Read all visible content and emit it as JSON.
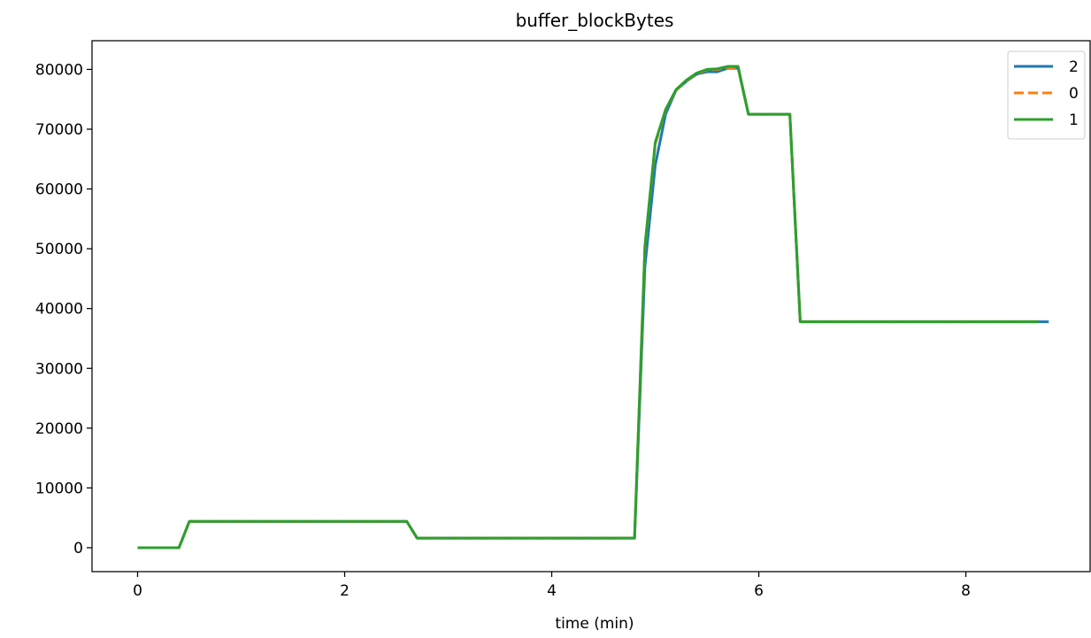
{
  "chart_data": {
    "type": "line",
    "title": "buffer_blockBytes",
    "xlabel": "time (min)",
    "ylabel": "",
    "xlim": [
      -0.44,
      9.2
    ],
    "ylim": [
      -4000,
      84800
    ],
    "xticks": [
      0,
      2,
      4,
      6,
      8
    ],
    "yticks": [
      0,
      10000,
      20000,
      30000,
      40000,
      50000,
      60000,
      70000,
      80000
    ],
    "legend_position": "top-right",
    "grid": false,
    "series": [
      {
        "name": "2",
        "color": "#1f77b4",
        "style": "solid",
        "x": [
          0,
          0.1,
          0.2,
          0.3,
          0.4,
          0.5,
          1.0,
          1.5,
          2.0,
          2.5,
          2.6,
          2.7,
          3.0,
          3.5,
          4.0,
          4.5,
          4.8,
          4.9,
          5.0,
          5.1,
          5.2,
          5.3,
          5.4,
          5.5,
          5.6,
          5.7,
          5.8,
          5.9,
          6.0,
          6.1,
          6.2,
          6.3,
          6.4,
          6.5,
          7.0,
          7.5,
          8.0,
          8.5,
          8.8
        ],
        "y": [
          0,
          0,
          0,
          0,
          0,
          4400,
          4400,
          4400,
          4400,
          4400,
          4400,
          1600,
          1600,
          1600,
          1600,
          1600,
          1600,
          47000,
          64000,
          72500,
          76500,
          78000,
          79200,
          79600,
          79600,
          80200,
          80200,
          72500,
          72500,
          72500,
          72500,
          72500,
          37800,
          37800,
          37800,
          37800,
          37800,
          37800,
          37800
        ]
      },
      {
        "name": "0",
        "color": "#ff7f0e",
        "style": "dashed",
        "x": [
          0,
          0.1,
          0.2,
          0.3,
          0.4,
          0.5,
          1.0,
          1.5,
          2.0,
          2.5,
          2.6,
          2.7,
          3.0,
          3.5,
          4.0,
          4.5,
          4.8,
          4.9,
          5.0,
          5.1,
          5.2,
          5.3,
          5.4,
          5.5,
          5.6,
          5.7,
          5.8,
          5.9,
          6.0,
          6.1,
          6.2,
          6.3,
          6.4,
          6.5,
          7.0,
          7.5,
          8.0,
          8.5,
          8.7
        ],
        "y": [
          0,
          0,
          0,
          0,
          0,
          4400,
          4400,
          4400,
          4400,
          4400,
          4400,
          1600,
          1600,
          1600,
          1600,
          1600,
          1600,
          50000,
          67500,
          73200,
          76500,
          78100,
          79300,
          79900,
          80000,
          80300,
          80300,
          72500,
          72500,
          72500,
          72500,
          72500,
          37800,
          37800,
          37800,
          37800,
          37800,
          37800,
          37800
        ]
      },
      {
        "name": "1",
        "color": "#2ca02c",
        "style": "solid",
        "x": [
          0,
          0.1,
          0.2,
          0.3,
          0.4,
          0.5,
          1.0,
          1.5,
          2.0,
          2.5,
          2.6,
          2.7,
          3.0,
          3.5,
          4.0,
          4.5,
          4.8,
          4.9,
          5.0,
          5.1,
          5.2,
          5.3,
          5.4,
          5.5,
          5.6,
          5.7,
          5.8,
          5.9,
          6.0,
          6.1,
          6.2,
          6.3,
          6.4,
          6.5,
          7.0,
          7.5,
          8.0,
          8.5,
          8.7
        ],
        "y": [
          0,
          0,
          0,
          0,
          0,
          4400,
          4400,
          4400,
          4400,
          4400,
          4400,
          1600,
          1600,
          1600,
          1600,
          1600,
          1600,
          50500,
          67800,
          73300,
          76600,
          78200,
          79400,
          80000,
          80100,
          80500,
          80500,
          72500,
          72500,
          72500,
          72500,
          72500,
          37800,
          37800,
          37800,
          37800,
          37800,
          37800,
          37800
        ]
      }
    ]
  }
}
